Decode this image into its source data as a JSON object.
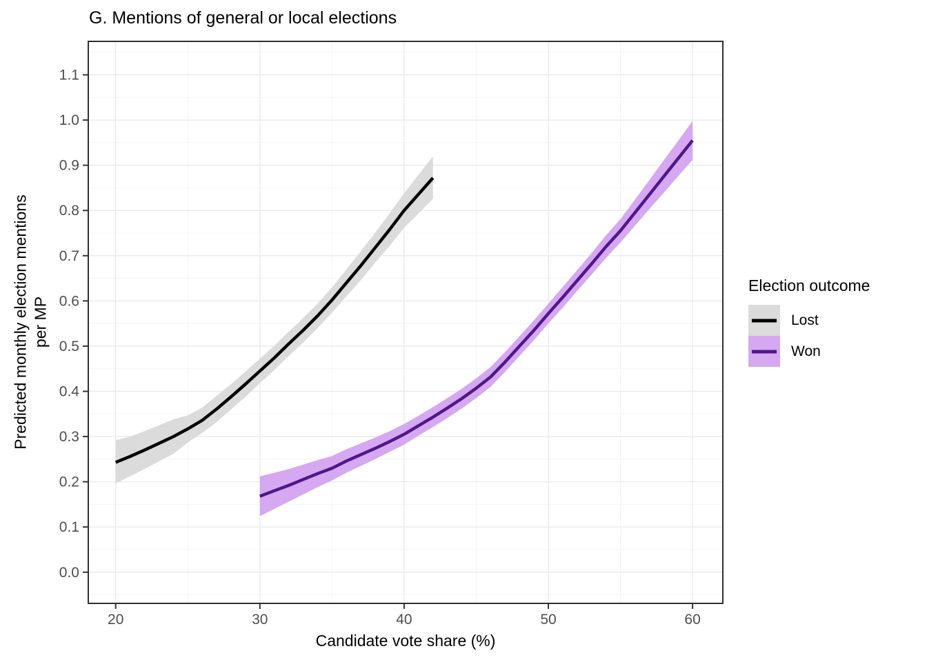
{
  "title": "G. Mentions of general or local elections",
  "axes": {
    "x_label": "Candidate vote share (%)",
    "y_label": "Predicted monthly election mentions\nper MP"
  },
  "legend": {
    "title": "Election outcome",
    "entries": [
      {
        "label": "Lost",
        "line_color": "#000000",
        "band_color": "#DBDBDB"
      },
      {
        "label": "Won",
        "line_color": "#50178A",
        "band_color": "#D5A8F1"
      }
    ]
  },
  "colors": {
    "background": "#FFFFFF",
    "grid_major": "#ECECEC",
    "grid_minor": "#F4F4F4",
    "panel_border": "#2F2F2F",
    "tick_label": "#4D4D4D",
    "lost_line": "#000000",
    "lost_band": "#DBDBDB",
    "won_line": "#50178A",
    "won_band": "#D5A8F1"
  },
  "chart_data": {
    "type": "line",
    "title": "G. Mentions of general or local elections",
    "xlabel": "Candidate vote share (%)",
    "ylabel": "Predicted monthly election mentions per MP",
    "xlim": [
      18.1,
      62.1
    ],
    "ylim": [
      -0.069,
      1.174
    ],
    "xticks": [
      20,
      30,
      40,
      50,
      60
    ],
    "yticks": [
      0.0,
      0.1,
      0.2,
      0.3,
      0.4,
      0.5,
      0.6,
      0.7,
      0.8,
      0.9,
      1.0,
      1.1
    ],
    "xticks_minor": [
      25,
      35,
      45,
      55
    ],
    "yticks_minor": [
      -0.05,
      0.05,
      0.15,
      0.25,
      0.35,
      0.45,
      0.55,
      0.65,
      0.75,
      0.85,
      0.95,
      1.05,
      1.15
    ],
    "grid": true,
    "legend_position": "right",
    "series": [
      {
        "name": "Lost",
        "line_color": "#000000",
        "band_color": "#DBDBDB",
        "x": [
          20,
          21,
          22,
          23,
          24,
          25,
          26,
          27,
          28,
          29,
          30,
          31,
          32,
          33,
          34,
          35,
          36,
          37,
          38,
          39,
          40,
          41,
          42
        ],
        "y": [
          0.243,
          0.256,
          0.27,
          0.285,
          0.3,
          0.317,
          0.336,
          0.361,
          0.388,
          0.416,
          0.445,
          0.474,
          0.505,
          0.535,
          0.567,
          0.602,
          0.64,
          0.678,
          0.718,
          0.758,
          0.8,
          0.836,
          0.872
        ],
        "ci_lower": [
          0.196,
          0.212,
          0.228,
          0.245,
          0.262,
          0.287,
          0.308,
          0.332,
          0.36,
          0.388,
          0.418,
          0.447,
          0.478,
          0.508,
          0.54,
          0.574,
          0.61,
          0.646,
          0.685,
          0.722,
          0.762,
          0.793,
          0.826
        ],
        "ci_upper": [
          0.292,
          0.3,
          0.312,
          0.325,
          0.338,
          0.347,
          0.364,
          0.39,
          0.416,
          0.444,
          0.472,
          0.501,
          0.532,
          0.562,
          0.594,
          0.63,
          0.67,
          0.71,
          0.751,
          0.794,
          0.838,
          0.879,
          0.92
        ]
      },
      {
        "name": "Won",
        "line_color": "#50178A",
        "band_color": "#D5A8F1",
        "x": [
          30,
          31,
          32,
          33,
          34,
          35,
          36,
          37,
          38,
          39,
          40,
          41,
          42,
          43,
          44,
          45,
          46,
          47,
          48,
          49,
          50,
          51,
          52,
          53,
          54,
          55,
          56,
          57,
          58,
          59,
          60
        ],
        "y": [
          0.168,
          0.18,
          0.192,
          0.205,
          0.218,
          0.23,
          0.246,
          0.26,
          0.274,
          0.289,
          0.305,
          0.324,
          0.343,
          0.363,
          0.384,
          0.407,
          0.432,
          0.465,
          0.5,
          0.535,
          0.572,
          0.608,
          0.645,
          0.682,
          0.72,
          0.755,
          0.795,
          0.835,
          0.875,
          0.915,
          0.955
        ],
        "ci_lower": [
          0.124,
          0.14,
          0.156,
          0.172,
          0.188,
          0.203,
          0.22,
          0.235,
          0.25,
          0.266,
          0.282,
          0.302,
          0.321,
          0.341,
          0.362,
          0.385,
          0.41,
          0.443,
          0.478,
          0.513,
          0.55,
          0.585,
          0.622,
          0.658,
          0.695,
          0.729,
          0.766,
          0.803,
          0.839,
          0.876,
          0.912
        ],
        "ci_upper": [
          0.212,
          0.22,
          0.228,
          0.238,
          0.248,
          0.257,
          0.272,
          0.285,
          0.298,
          0.312,
          0.328,
          0.346,
          0.365,
          0.385,
          0.406,
          0.429,
          0.454,
          0.487,
          0.522,
          0.557,
          0.594,
          0.631,
          0.668,
          0.706,
          0.745,
          0.781,
          0.824,
          0.867,
          0.911,
          0.954,
          0.998
        ]
      }
    ]
  }
}
